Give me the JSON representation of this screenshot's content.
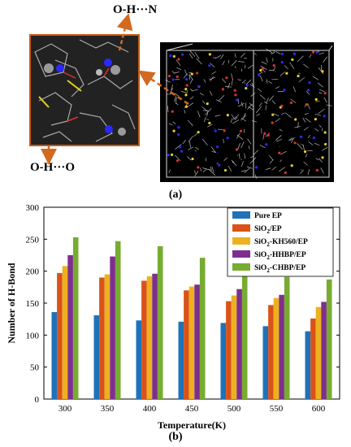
{
  "panel_a": {
    "label_top": "O-H···N",
    "label_bottom": "O-H···O",
    "panel_label": "(a)",
    "arrow_color": "#d2691e"
  },
  "panel_b": {
    "panel_label": "(b)"
  },
  "chart_data": {
    "type": "bar",
    "categories": [
      "300",
      "350",
      "400",
      "450",
      "500",
      "550",
      "600"
    ],
    "xlabel": "Temperature(K)",
    "ylabel": "Number of H-Bond",
    "ylim": [
      0,
      300
    ],
    "yticks": [
      0,
      50,
      100,
      150,
      200,
      250,
      300
    ],
    "grid": false,
    "legend_position": "top-right",
    "series": [
      {
        "name": "Pure EP",
        "color": "#1f72b8",
        "values": [
          136,
          131,
          123,
          121,
          119,
          114,
          106
        ]
      },
      {
        "name": "SiO2/EP",
        "color": "#d95319",
        "values": [
          197,
          190,
          185,
          170,
          153,
          147,
          126
        ]
      },
      {
        "name": "SiO2-KH560/EP",
        "color": "#edb120",
        "values": [
          208,
          195,
          192,
          176,
          162,
          158,
          144
        ]
      },
      {
        "name": "SiO2-HHBP/EP",
        "color": "#7e2f8e",
        "values": [
          225,
          223,
          196,
          179,
          172,
          163,
          152
        ]
      },
      {
        "name": "SiO2-CHBP/EP",
        "color": "#77ac30",
        "values": [
          253,
          247,
          239,
          221,
          209,
          191,
          187
        ]
      }
    ]
  }
}
